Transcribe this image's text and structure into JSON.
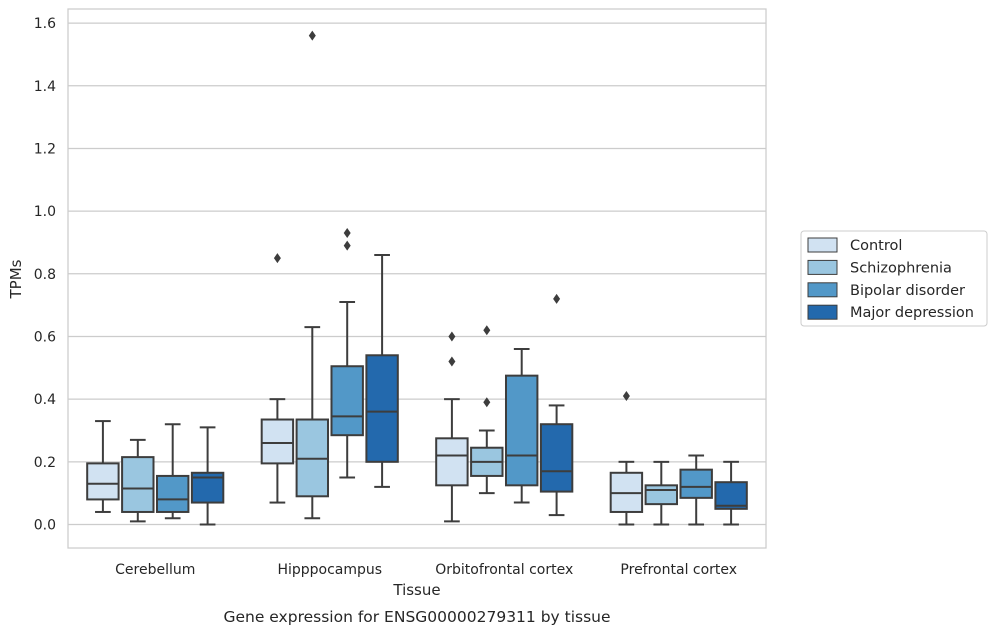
{
  "chart_data": {
    "type": "box",
    "caption": "Gene expression for ENSG00000279311 by tissue",
    "xlabel": "Tissue",
    "ylabel": "TPMs",
    "ylim": [
      -0.075,
      1.645
    ],
    "yticks": [
      "0.0",
      "0.2",
      "0.4",
      "0.6",
      "0.8",
      "1.0",
      "1.2",
      "1.4",
      "1.6"
    ],
    "grid": "horizontal",
    "legend_position": "right",
    "categories": [
      "Cerebellum",
      "Hipppocampus",
      "Orbitofrontal cortex",
      "Prefrontal cortex"
    ],
    "series": [
      {
        "name": "Control",
        "color": "#d1e2f2",
        "boxes": [
          {
            "whislo": 0.04,
            "q1": 0.08,
            "med": 0.13,
            "q3": 0.195,
            "whishi": 0.33,
            "fliers": []
          },
          {
            "whislo": 0.07,
            "q1": 0.195,
            "med": 0.26,
            "q3": 0.335,
            "whishi": 0.4,
            "fliers": [
              0.85
            ]
          },
          {
            "whislo": 0.01,
            "q1": 0.125,
            "med": 0.22,
            "q3": 0.275,
            "whishi": 0.4,
            "fliers": [
              0.52,
              0.6
            ]
          },
          {
            "whislo": 0.0,
            "q1": 0.04,
            "med": 0.1,
            "q3": 0.165,
            "whishi": 0.2,
            "fliers": [
              0.41
            ]
          }
        ]
      },
      {
        "name": "Schizophrenia",
        "color": "#9ac6e0",
        "boxes": [
          {
            "whislo": 0.01,
            "q1": 0.04,
            "med": 0.115,
            "q3": 0.215,
            "whishi": 0.27,
            "fliers": []
          },
          {
            "whislo": 0.02,
            "q1": 0.09,
            "med": 0.21,
            "q3": 0.335,
            "whishi": 0.63,
            "fliers": [
              1.56
            ]
          },
          {
            "whislo": 0.1,
            "q1": 0.155,
            "med": 0.2,
            "q3": 0.245,
            "whishi": 0.3,
            "fliers": [
              0.39,
              0.62
            ]
          },
          {
            "whislo": 0.0,
            "q1": 0.065,
            "med": 0.11,
            "q3": 0.125,
            "whishi": 0.2,
            "fliers": []
          }
        ]
      },
      {
        "name": "Bipolar disorder",
        "color": "#5298c8",
        "boxes": [
          {
            "whislo": 0.02,
            "q1": 0.04,
            "med": 0.08,
            "q3": 0.155,
            "whishi": 0.32,
            "fliers": []
          },
          {
            "whislo": 0.15,
            "q1": 0.285,
            "med": 0.345,
            "q3": 0.505,
            "whishi": 0.71,
            "fliers": [
              0.89,
              0.93
            ]
          },
          {
            "whislo": 0.07,
            "q1": 0.125,
            "med": 0.22,
            "q3": 0.475,
            "whishi": 0.56,
            "fliers": []
          },
          {
            "whislo": 0.0,
            "q1": 0.085,
            "med": 0.12,
            "q3": 0.175,
            "whishi": 0.22,
            "fliers": []
          }
        ]
      },
      {
        "name": "Major depression",
        "color": "#2369ad",
        "boxes": [
          {
            "whislo": 0.0,
            "q1": 0.07,
            "med": 0.15,
            "q3": 0.165,
            "whishi": 0.31,
            "fliers": []
          },
          {
            "whislo": 0.12,
            "q1": 0.2,
            "med": 0.36,
            "q3": 0.54,
            "whishi": 0.86,
            "fliers": []
          },
          {
            "whislo": 0.03,
            "q1": 0.105,
            "med": 0.17,
            "q3": 0.32,
            "whishi": 0.38,
            "fliers": [
              0.72
            ]
          },
          {
            "whislo": 0.0,
            "q1": 0.05,
            "med": 0.06,
            "q3": 0.135,
            "whishi": 0.2,
            "fliers": []
          }
        ]
      }
    ]
  }
}
